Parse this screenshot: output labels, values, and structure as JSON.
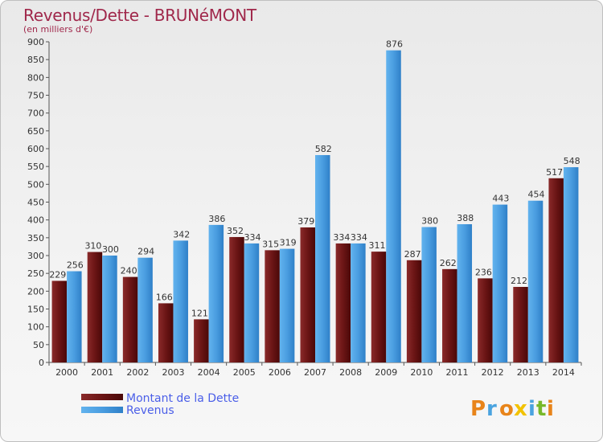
{
  "header": {
    "title": "Revenus/Dette - BRUNéMONT",
    "subtitle": "(en milliers d'€)"
  },
  "logo": {
    "letters": [
      "P",
      "r",
      "o",
      "x",
      "i",
      "t",
      "i"
    ]
  },
  "colors": {
    "dette": "#6b1515",
    "revenus": "#4a9de0"
  },
  "chart_data": {
    "type": "bar",
    "ylim": [
      0,
      900
    ],
    "ytick_step": 50,
    "grid": false,
    "legend_position": "bottom-left",
    "categories": [
      "2000",
      "2001",
      "2002",
      "2003",
      "2004",
      "2005",
      "2006",
      "2007",
      "2008",
      "2009",
      "2010",
      "2011",
      "2012",
      "2013",
      "2014"
    ],
    "series": [
      {
        "name": "Montant de la Dette",
        "values": [
          229,
          310,
          240,
          166,
          121,
          352,
          315,
          379,
          334,
          311,
          287,
          262,
          236,
          212,
          517
        ]
      },
      {
        "name": "Revenus",
        "values": [
          256,
          300,
          294,
          342,
          386,
          334,
          319,
          582,
          334,
          876,
          380,
          388,
          443,
          454,
          548
        ]
      }
    ]
  }
}
